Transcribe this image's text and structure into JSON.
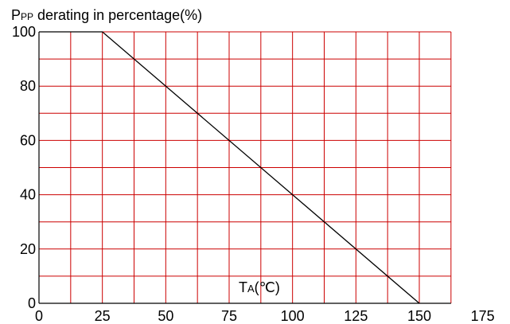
{
  "chart_data": {
    "type": "line",
    "title": {
      "main": "P",
      "subscript": "PP",
      "rest": " derating in  percentage(%)"
    },
    "xlabel": {
      "main": "T",
      "subscript": "A",
      "rest": "(℃)"
    },
    "ylabel": "",
    "xlim": [
      0,
      175
    ],
    "ylim": [
      0,
      100
    ],
    "x_ticks": [
      0,
      25,
      50,
      75,
      100,
      125,
      150,
      175
    ],
    "y_ticks": [
      0,
      20,
      40,
      60,
      80,
      100
    ],
    "x_tick_labels": [
      "0",
      "25",
      "50",
      "75",
      "100",
      "125",
      "150",
      "175"
    ],
    "y_tick_labels": [
      "0",
      "20",
      "40",
      "60",
      "80",
      "100"
    ],
    "grid": true,
    "grid_x_step": 12.5,
    "grid_y_step": 10,
    "series": [
      {
        "x": [
          0,
          25,
          150
        ],
        "y": [
          100,
          100,
          0
        ]
      }
    ],
    "colors": {
      "grid": "#cc0000",
      "line": "#000000",
      "axis": "#000000"
    }
  }
}
